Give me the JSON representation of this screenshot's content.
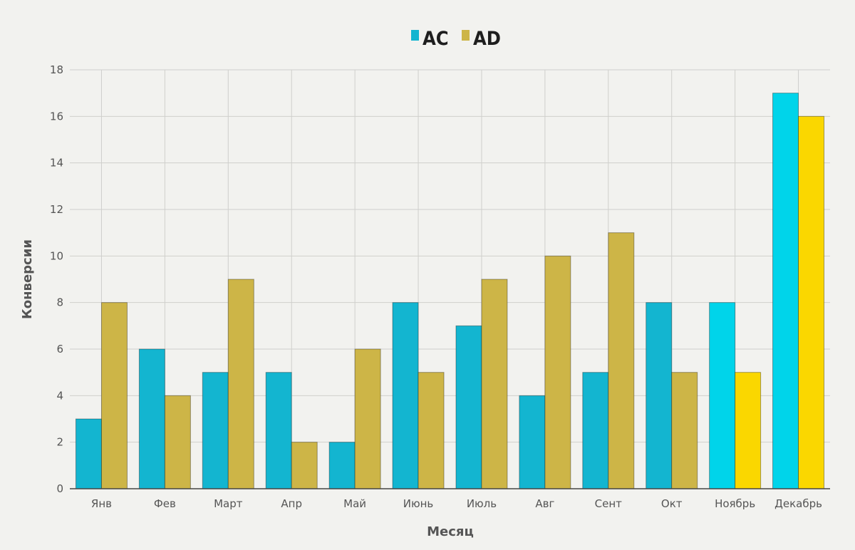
{
  "chart_data": {
    "type": "bar",
    "title": "",
    "xlabel": "Месяц",
    "ylabel": "Конверсии",
    "ylim": [
      0,
      18
    ],
    "yticks": [
      0,
      2,
      4,
      6,
      8,
      10,
      12,
      14,
      16,
      18
    ],
    "grid": true,
    "legend": "top-center",
    "categories": [
      "Янв",
      "Фев",
      "Март",
      "Апр",
      "Май",
      "Июнь",
      "Июль",
      "Авг",
      "Сент",
      "Окт",
      "Ноябрь",
      "Декабрь"
    ],
    "series": [
      {
        "name": "AC",
        "color": "#13b5d0",
        "values": [
          3,
          6,
          5,
          5,
          2,
          8,
          7,
          4,
          5,
          8,
          8,
          17
        ]
      },
      {
        "name": "AD",
        "color": "#cdb547",
        "values": [
          8,
          4,
          9,
          2,
          6,
          5,
          9,
          10,
          11,
          5,
          5,
          16
        ]
      }
    ],
    "highlight": {
      "categories": [
        "Ноябрь",
        "Декабрь"
      ],
      "colors": {
        "AC": "#00d4ea",
        "AD": "#fad700"
      }
    }
  }
}
